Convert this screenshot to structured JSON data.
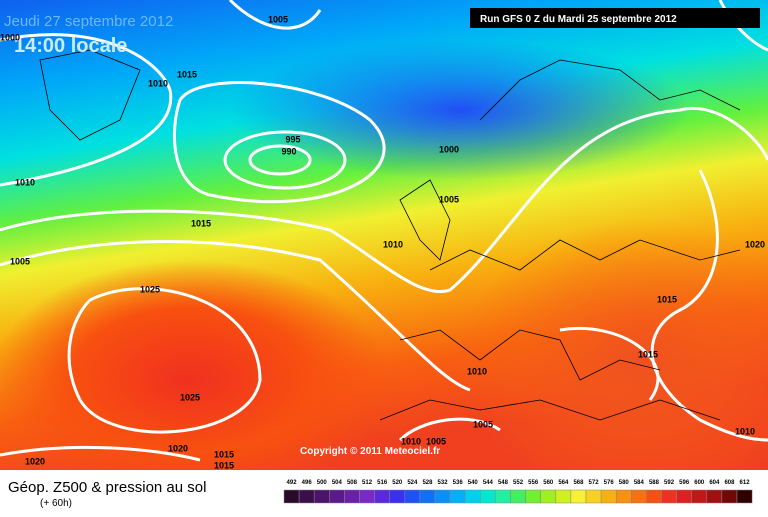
{
  "header": {
    "date": "Jeudi 27 septembre 2012",
    "time": "14:00 locale",
    "run": "Run GFS 0 Z du Mardi 25 septembre 2012"
  },
  "isobar_labels": [
    1000,
    1005,
    1015,
    1010,
    995,
    990,
    1000,
    1010,
    1005,
    1015,
    1010,
    1005,
    1025,
    1020,
    1015,
    1015,
    1010,
    1025,
    1005,
    1010,
    1020,
    1015,
    1015,
    1020,
    1010,
    1005
  ],
  "copyright": "Copyright © 2011 Meteociel.fr",
  "footer": {
    "title": "Géop. Z500 & pression au sol",
    "lead": "(+ 60h)"
  },
  "legend": {
    "labels": [
      492,
      496,
      500,
      504,
      508,
      512,
      516,
      520,
      524,
      528,
      532,
      536,
      540,
      544,
      548,
      552,
      556,
      560,
      564,
      568,
      572,
      576,
      580,
      584,
      588,
      592,
      596,
      600,
      604,
      608,
      612
    ],
    "colors": [
      "#2a0a2a",
      "#3a0f4a",
      "#4b146a",
      "#5a1a8a",
      "#6a1fa8",
      "#7a28c8",
      "#5a28e0",
      "#3a30f0",
      "#2050f8",
      "#1070f8",
      "#0890f8",
      "#00b0f8",
      "#00d0f0",
      "#00e8d0",
      "#20f0a0",
      "#40f060",
      "#70f030",
      "#a0f020",
      "#d0f020",
      "#f8f030",
      "#f8d020",
      "#f8b010",
      "#f89010",
      "#f87010",
      "#f85010",
      "#f03020",
      "#e02020",
      "#c01818",
      "#a01010",
      "#700808",
      "#300000"
    ]
  }
}
